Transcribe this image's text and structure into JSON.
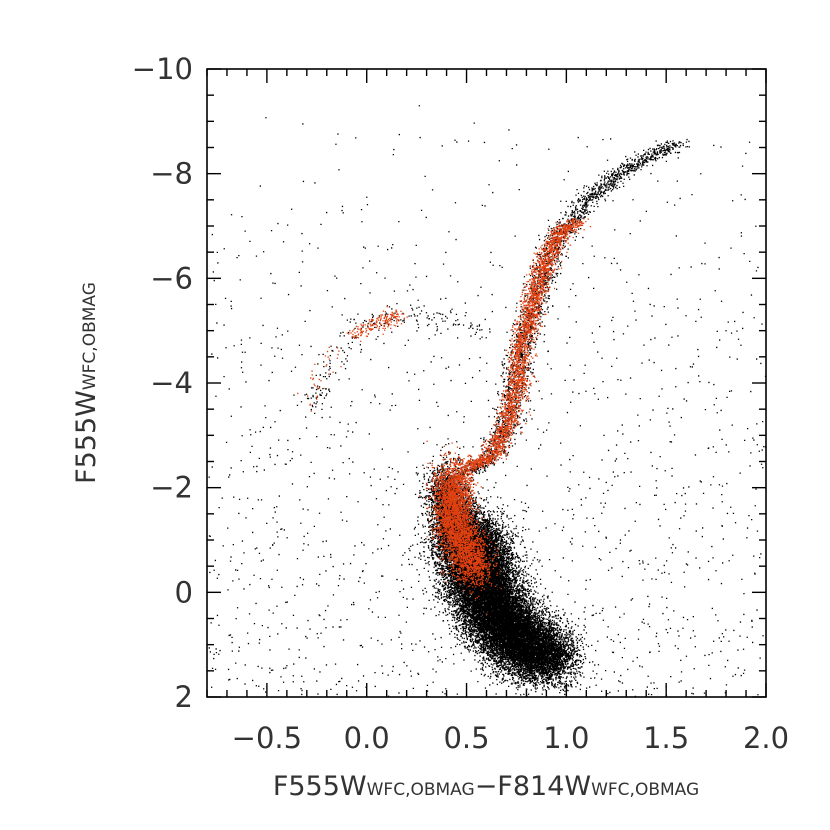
{
  "chart_data": {
    "type": "scatter",
    "title": "",
    "xlabel": {
      "parts": [
        {
          "text": "F555W",
          "sub": false
        },
        {
          "text": "WFC,OBMAG",
          "sub": true
        },
        {
          "text": "−F814W",
          "sub": false
        },
        {
          "text": "WFC,OBMAG",
          "sub": true
        }
      ]
    },
    "ylabel": {
      "parts": [
        {
          "text": "F555W",
          "sub": false
        },
        {
          "text": "WFC,OBMAG",
          "sub": true
        }
      ]
    },
    "xlim": [
      -0.8,
      2.0
    ],
    "ylim": [
      2,
      -10
    ],
    "y_inverted": true,
    "grid": false,
    "legend": "none",
    "x_ticks": [
      {
        "value": -0.5,
        "label": "−0.5"
      },
      {
        "value": 0.0,
        "label": "0.0"
      },
      {
        "value": 0.5,
        "label": "0.5"
      },
      {
        "value": 1.0,
        "label": "1.0"
      },
      {
        "value": 1.5,
        "label": "1.5"
      },
      {
        "value": 2.0,
        "label": "2.0"
      }
    ],
    "y_ticks": [
      {
        "value": -10,
        "label": "−10"
      },
      {
        "value": -8,
        "label": "−8"
      },
      {
        "value": -6,
        "label": "−6"
      },
      {
        "value": -4,
        "label": "−4"
      },
      {
        "value": -2,
        "label": "−2"
      },
      {
        "value": 0,
        "label": "0"
      },
      {
        "value": 2,
        "label": "2"
      }
    ],
    "series": [
      {
        "color": "#000000",
        "features": [
          {
            "kind": "main_sequence_core",
            "points": [
              [
                0.5,
                -1.2
              ],
              [
                0.54,
                -0.6
              ],
              [
                0.58,
                -0.1
              ],
              [
                0.63,
                0.3
              ],
              [
                0.7,
                0.7
              ],
              [
                0.8,
                1.05
              ],
              [
                0.92,
                1.3
              ]
            ],
            "count": 22000,
            "spread_x": 0.09,
            "spread_y": 0.28
          },
          {
            "kind": "subgiant_branch",
            "points": [
              [
                0.38,
                -2.1
              ],
              [
                0.42,
                -1.6
              ],
              [
                0.46,
                -1.2
              ]
            ],
            "count": 2500,
            "spread_x": 0.05,
            "spread_y": 0.25
          },
          {
            "kind": "red_giant_branch",
            "points": [
              [
                0.5,
                -2.3
              ],
              [
                0.62,
                -2.6
              ],
              [
                0.7,
                -3.3
              ],
              [
                0.75,
                -4.2
              ],
              [
                0.8,
                -5.0
              ],
              [
                0.87,
                -6.0
              ],
              [
                0.96,
                -6.8
              ],
              [
                1.1,
                -7.5
              ],
              [
                1.3,
                -8.1
              ],
              [
                1.55,
                -8.6
              ]
            ],
            "count": 2200,
            "spread_x": 0.035,
            "spread_y": 0.05
          },
          {
            "kind": "horizontal_branch",
            "points": [
              [
                -0.3,
                -3.5
              ],
              [
                -0.2,
                -4.2
              ],
              [
                -0.1,
                -4.9
              ],
              [
                0.0,
                -5.1
              ],
              [
                0.12,
                -5.3
              ],
              [
                0.35,
                -5.3
              ],
              [
                0.6,
                -5.0
              ]
            ],
            "count": 200,
            "spread_x": 0.03,
            "spread_y": 0.12
          },
          {
            "kind": "field_background",
            "x_range": [
              -0.8,
              2.0
            ],
            "y_range": [
              -9.5,
              2.0
            ],
            "count": 1500
          }
        ]
      },
      {
        "color": "#e04010",
        "features": [
          {
            "kind": "upper_main_sequence_turnoff",
            "points": [
              [
                0.44,
                -2.3
              ],
              [
                0.42,
                -1.8
              ],
              [
                0.44,
                -1.3
              ],
              [
                0.48,
                -0.9
              ],
              [
                0.55,
                -0.4
              ]
            ],
            "count": 3500,
            "spread_x": 0.05,
            "spread_y": 0.22
          },
          {
            "kind": "red_giant_branch",
            "points": [
              [
                0.5,
                -2.4
              ],
              [
                0.62,
                -2.6
              ],
              [
                0.7,
                -3.2
              ],
              [
                0.75,
                -4.0
              ],
              [
                0.78,
                -4.8
              ],
              [
                0.84,
                -5.7
              ],
              [
                0.9,
                -6.4
              ],
              [
                0.97,
                -6.9
              ],
              [
                1.05,
                -7.1
              ]
            ],
            "count": 2800,
            "spread_x": 0.03,
            "spread_y": 0.05
          },
          {
            "kind": "horizontal_branch_clump",
            "points": [
              [
                -0.05,
                -4.95
              ],
              [
                0.02,
                -5.1
              ],
              [
                0.1,
                -5.2
              ],
              [
                0.16,
                -5.35
              ]
            ],
            "count": 180,
            "spread_x": 0.03,
            "spread_y": 0.07
          },
          {
            "kind": "blue_horizontal_branch",
            "points": [
              [
                -0.3,
                -3.6
              ],
              [
                -0.22,
                -4.2
              ],
              [
                -0.14,
                -4.7
              ]
            ],
            "count": 35,
            "spread_x": 0.03,
            "spread_y": 0.15
          }
        ]
      }
    ]
  }
}
